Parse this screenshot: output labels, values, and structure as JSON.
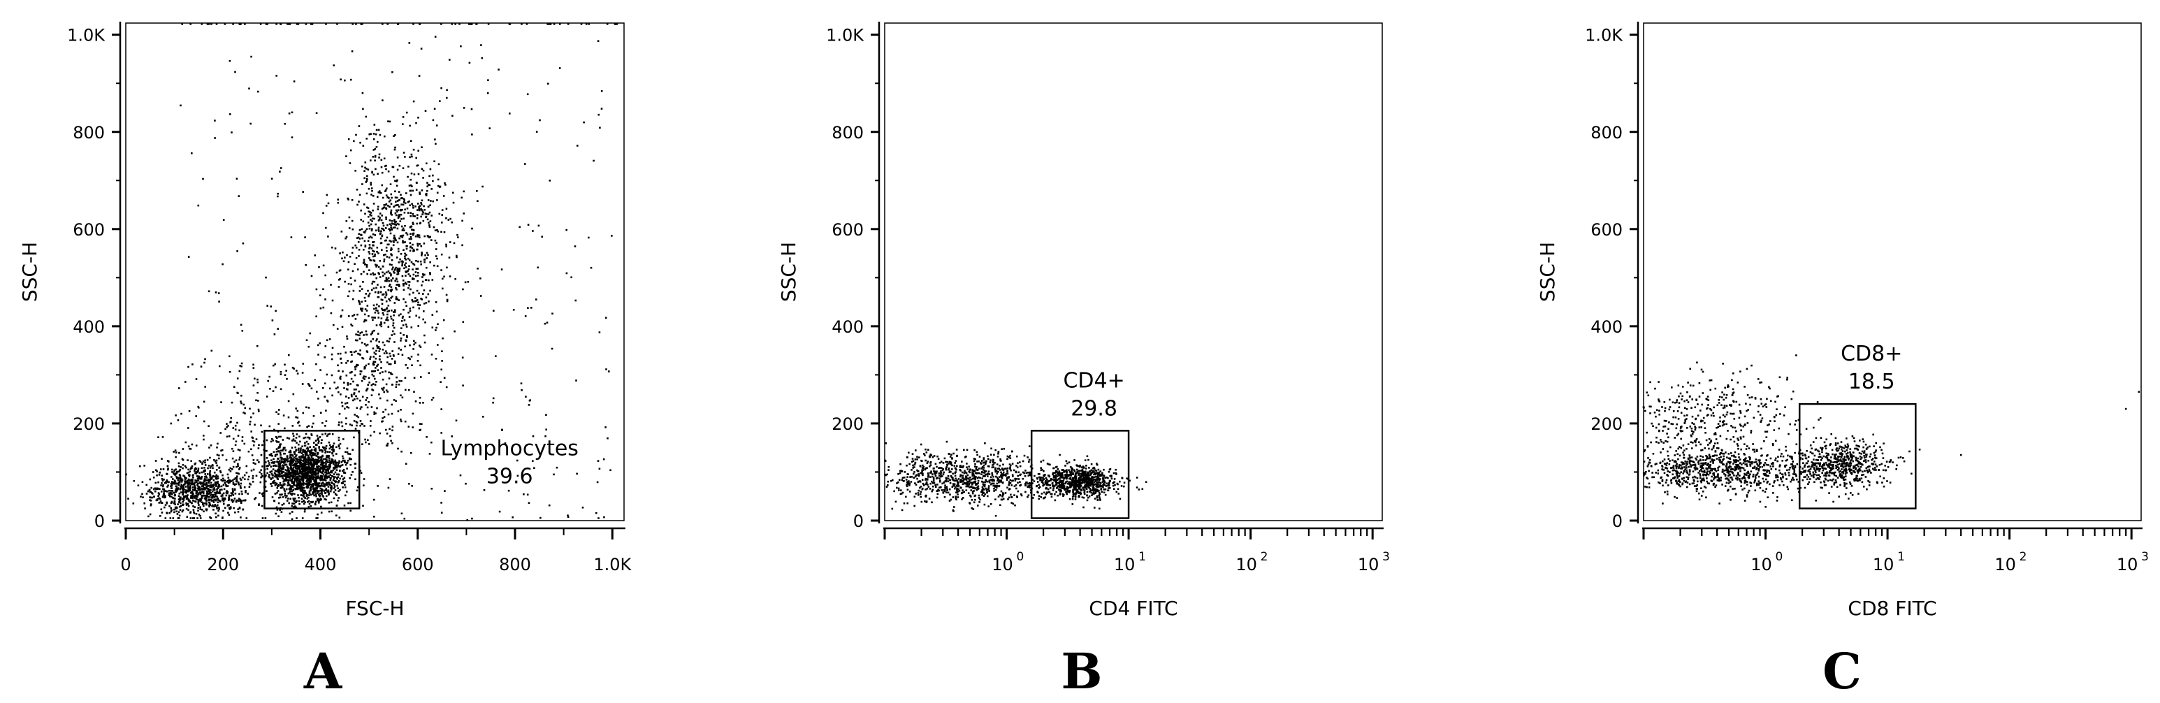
{
  "chart_data": [
    {
      "panel": "A",
      "type": "scatter",
      "xlabel": "FSC-H",
      "ylabel": "SSC-H",
      "x_scale": "linear",
      "xlim": [
        0,
        1024
      ],
      "ylim": [
        0,
        1024
      ],
      "x_ticks": [
        {
          "value": 0,
          "label": "0"
        },
        {
          "value": 200,
          "label": "200"
        },
        {
          "value": 400,
          "label": "400"
        },
        {
          "value": 600,
          "label": "600"
        },
        {
          "value": 800,
          "label": "800"
        },
        {
          "value": 1000,
          "label": "1.0K"
        }
      ],
      "y_ticks": [
        {
          "value": 0,
          "label": "0"
        },
        {
          "value": 200,
          "label": "200"
        },
        {
          "value": 400,
          "label": "400"
        },
        {
          "value": 600,
          "label": "600"
        },
        {
          "value": 800,
          "label": "800"
        },
        {
          "value": 1000,
          "label": "1.0K"
        }
      ],
      "gate": {
        "name": "Lymphocytes",
        "percent": "39.6",
        "x_range": [
          285,
          480
        ],
        "y_range": [
          25,
          185
        ]
      },
      "populations": [
        {
          "n": 1500,
          "cx": 370,
          "cy": 100,
          "sx": 40,
          "sy": 32
        },
        {
          "n": 900,
          "cx": 145,
          "cy": 65,
          "sx": 50,
          "sy": 28
        },
        {
          "n": 1000,
          "cx": 555,
          "cy": 560,
          "sx": 55,
          "sy": 110
        },
        {
          "n": 350,
          "cx": 490,
          "cy": 290,
          "sx": 60,
          "sy": 70
        },
        {
          "n": 220,
          "cx": 250,
          "cy": 180,
          "sx": 70,
          "sy": 80
        }
      ],
      "background_points": 320,
      "background_xlim": [
        90,
        1000
      ],
      "background_ylim": [
        0,
        1000
      ],
      "saturated_top_points": 70,
      "saturated_top_xlim": [
        100,
        1010
      ]
    },
    {
      "panel": "B",
      "type": "scatter",
      "xlabel": "CD4 FITC",
      "ylabel": "SSC-H",
      "x_scale": "log",
      "xlim": [
        0.1,
        1200
      ],
      "ylim": [
        0,
        1024
      ],
      "x_ticks": [
        {
          "value": 1,
          "label": "10",
          "sup": "0"
        },
        {
          "value": 10,
          "label": "10",
          "sup": "1"
        },
        {
          "value": 100,
          "label": "10",
          "sup": "2"
        },
        {
          "value": 1000,
          "label": "10",
          "sup": "3"
        }
      ],
      "y_ticks": [
        {
          "value": 0,
          "label": "0"
        },
        {
          "value": 200,
          "label": "200"
        },
        {
          "value": 400,
          "label": "400"
        },
        {
          "value": 600,
          "label": "600"
        },
        {
          "value": 800,
          "label": "800"
        },
        {
          "value": 1000,
          "label": "1.0K"
        }
      ],
      "gate": {
        "name": "CD4+",
        "percent": "29.8",
        "x_range": [
          1.6,
          10
        ],
        "y_range": [
          5,
          185
        ]
      },
      "populations": [
        {
          "n": 800,
          "cx": 3.8,
          "cy": 80,
          "sx": 0.17,
          "sy": 16
        },
        {
          "n": 900,
          "cx": 0.45,
          "cy": 88,
          "sx": 0.35,
          "sy": 26
        }
      ]
    },
    {
      "panel": "C",
      "type": "scatter",
      "xlabel": "CD8 FITC",
      "ylabel": "SSC-H",
      "x_scale": "log",
      "xlim": [
        0.1,
        1200
      ],
      "ylim": [
        0,
        1024
      ],
      "x_ticks": [
        {
          "value": 1,
          "label": "10",
          "sup": "0"
        },
        {
          "value": 10,
          "label": "10",
          "sup": "1"
        },
        {
          "value": 100,
          "label": "10",
          "sup": "2"
        },
        {
          "value": 1000,
          "label": "10",
          "sup": "3"
        }
      ],
      "y_ticks": [
        {
          "value": 0,
          "label": "0"
        },
        {
          "value": 200,
          "label": "200"
        },
        {
          "value": 400,
          "label": "400"
        },
        {
          "value": 600,
          "label": "600"
        },
        {
          "value": 800,
          "label": "800"
        },
        {
          "value": 1000,
          "label": "1.0K"
        }
      ],
      "gate": {
        "name": "CD8+",
        "percent": "18.5",
        "x_range": [
          1.9,
          17
        ],
        "y_range": [
          25,
          240
        ]
      },
      "populations": [
        {
          "n": 550,
          "cx": 4.2,
          "cy": 115,
          "sx": 0.2,
          "sy": 24
        },
        {
          "n": 850,
          "cx": 0.4,
          "cy": 105,
          "sx": 0.4,
          "sy": 24
        },
        {
          "n": 380,
          "cx": 0.35,
          "cy": 215,
          "sx": 0.35,
          "sy": 42
        }
      ],
      "outliers": [
        [
          40,
          135
        ],
        [
          900,
          230
        ],
        [
          1150,
          265
        ]
      ]
    }
  ],
  "labels": {
    "A": "A",
    "B": "B",
    "C": "C"
  }
}
